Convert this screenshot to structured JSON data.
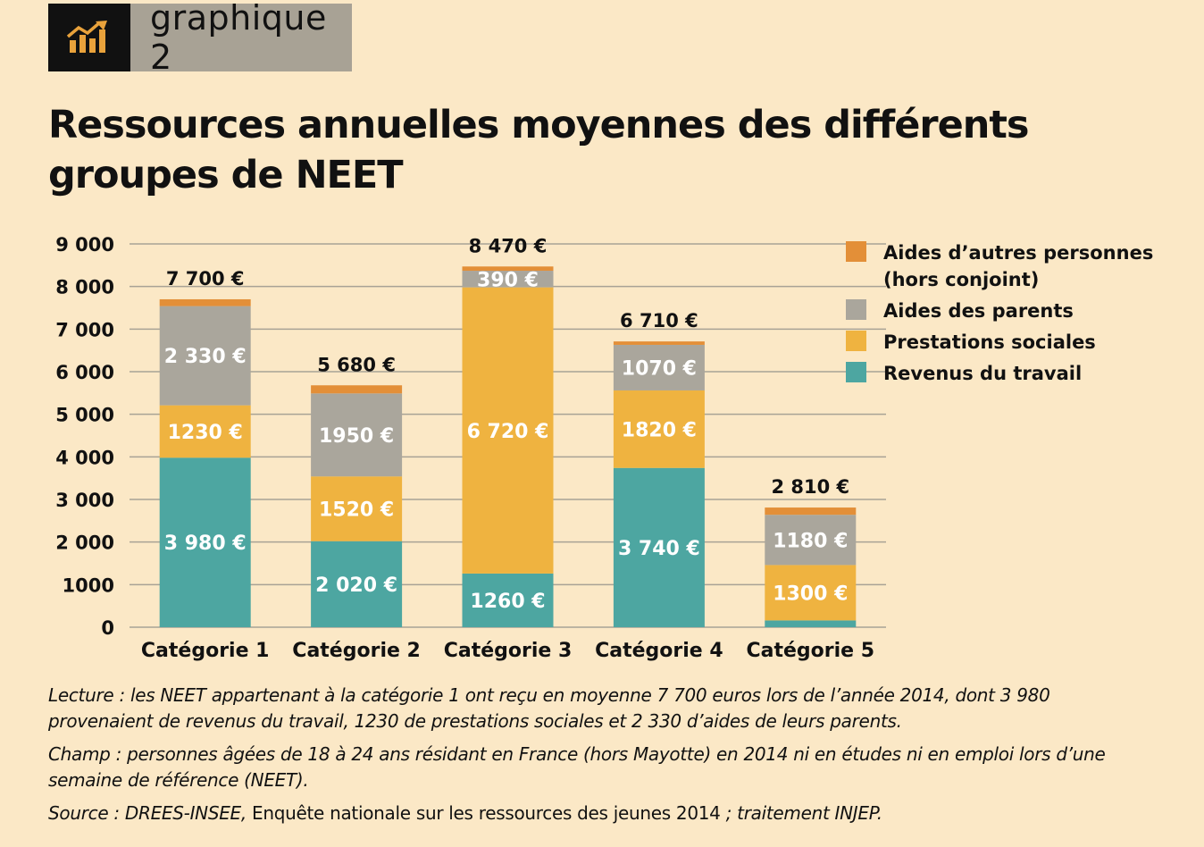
{
  "badge": {
    "label": "graphique 2",
    "icon": "rising-bar-chart-icon"
  },
  "title": "Ressources annuelles moyennes des différents groupes de NEET",
  "chart_data": {
    "type": "bar",
    "stacked": true,
    "categories": [
      "Catégorie 1",
      "Catégorie 2",
      "Catégorie 3",
      "Catégorie 4",
      "Catégorie 5"
    ],
    "totals": [
      7700,
      5680,
      8470,
      6710,
      2810
    ],
    "total_labels": [
      "7 700 €",
      "5 680 €",
      "8 470 €",
      "6 710 €",
      "2 810 €"
    ],
    "series": [
      {
        "name": "Revenus du travail",
        "color": "#4da6a1",
        "values": [
          3980,
          2020,
          1260,
          3740,
          160
        ],
        "labels": [
          "3 980 €",
          "2 020 €",
          "1260 €",
          "3 740 €",
          ""
        ]
      },
      {
        "name": "Prestations sociales",
        "color": "#efb340",
        "values": [
          1230,
          1520,
          6720,
          1820,
          1300
        ],
        "labels": [
          "1230 €",
          "1520 €",
          "6 720 €",
          "1820 €",
          "1300 €"
        ]
      },
      {
        "name": "Aides des parents",
        "color": "#aaa69c",
        "values": [
          2330,
          1950,
          390,
          1070,
          1180
        ],
        "labels": [
          "2 330 €",
          "1950 €",
          "390 €",
          "1070 €",
          "1180 €"
        ]
      },
      {
        "name": "Aides d’autres personnes (hors conjoint)",
        "color": "#e38f38",
        "values": [
          160,
          190,
          100,
          80,
          170
        ],
        "labels": [
          "",
          "",
          "",
          "",
          ""
        ]
      }
    ],
    "legend_order": [
      3,
      2,
      1,
      0
    ],
    "legend_lines": [
      [
        "Aides d’autres personnes",
        "(hors conjoint)"
      ],
      [
        "Aides des parents"
      ],
      [
        "Prestations sociales"
      ],
      [
        "Revenus du travail"
      ]
    ],
    "yticks": [
      0,
      1000,
      2000,
      3000,
      4000,
      5000,
      6000,
      7000,
      8000,
      9000
    ],
    "ytick_labels": [
      "0",
      "1000",
      "2 000",
      "3 000",
      "4 000",
      "5 000",
      "6 000",
      "7 000",
      "8 000",
      "9 000"
    ],
    "ylim": [
      0,
      9000
    ],
    "grid": true,
    "legend_position": "top-right",
    "xlabel": "",
    "ylabel": ""
  },
  "notes": {
    "lecture": "Lecture : les NEET appartenant à la catégorie 1 ont reçu en moyenne 7 700 euros lors de l’année 2014, dont 3 980 provenaient de revenus du travail, 1230 de prestations sociales et 2 330 d’aides de leurs parents.",
    "champ": "Champ : personnes âgées de 18 à 24 ans résidant en France (hors Mayotte) en 2014 ni en études ni en emploi lors d’une semaine de référence (NEET).",
    "source_prefix": "Source : DREES-INSEE,",
    "source_main": " Enquête nationale sur les ressources des jeunes 2014",
    "source_suffix": " ; traitement INJEP."
  }
}
